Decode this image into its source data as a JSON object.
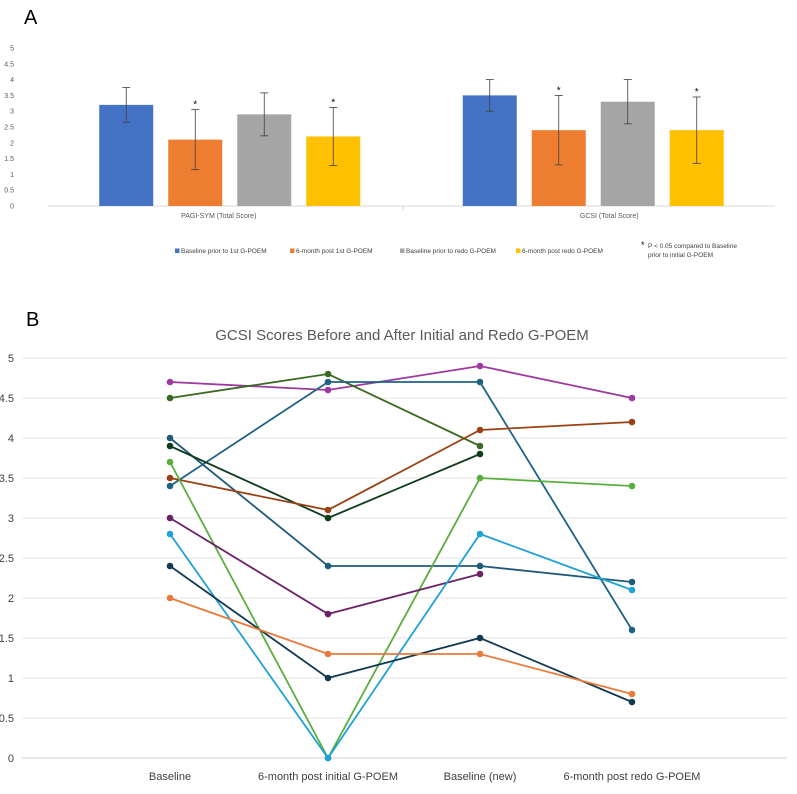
{
  "panel_a_label": "A",
  "panel_b_label": "B",
  "chart_data": [
    {
      "type": "bar",
      "panel": "A",
      "title": "",
      "categories": [
        "PAGI-SYM (Total Score)",
        "GCSI (Total Score)"
      ],
      "series": [
        {
          "name": "Baseline prior to 1st G-POEM",
          "color": "#4472C4",
          "values": [
            3.2,
            3.5
          ],
          "error": [
            0.55,
            0.5
          ],
          "significant": [
            false,
            false
          ]
        },
        {
          "name": "6-month post 1st G-POEM",
          "color": "#ED7D31",
          "values": [
            2.1,
            2.4
          ],
          "error": [
            0.95,
            1.1
          ],
          "significant": [
            true,
            true
          ]
        },
        {
          "name": "Baseline prior to redo G-POEM",
          "color": "#A5A5A5",
          "values": [
            2.9,
            3.3
          ],
          "error": [
            0.68,
            0.7
          ],
          "significant": [
            false,
            false
          ]
        },
        {
          "name": "6-month post redo G-POEM",
          "color": "#FFC000",
          "values": [
            2.2,
            2.4
          ],
          "error": [
            0.92,
            1.05
          ],
          "significant": [
            true,
            true
          ]
        }
      ],
      "ylim": [
        0,
        5
      ],
      "yticks": [
        "0",
        "0.5",
        "1",
        "1.5",
        "2",
        "2.5",
        "3",
        "3.5",
        "4",
        "4.5",
        "5"
      ],
      "footnote_marker": "*",
      "footnote_lines": [
        "P < 0.05 compared to Baseline",
        "prior to initial G-POEM"
      ],
      "legend_position": "bottom"
    },
    {
      "type": "line",
      "panel": "B",
      "title": "GCSI Scores Before and After Initial and Redo G-POEM",
      "categories": [
        "Baseline",
        "6-month post initial G-POEM",
        "Baseline (new)",
        "6-month post redo G-POEM"
      ],
      "ylim": [
        0,
        5
      ],
      "yticks": [
        "0",
        "0.5",
        "1",
        "1.5",
        "2",
        "2.5",
        "3",
        "3.5",
        "4",
        "4.5",
        "5"
      ],
      "grid": true,
      "series": [
        {
          "color": "#9E3A9E",
          "values": [
            4.7,
            4.6,
            4.9,
            4.5
          ]
        },
        {
          "color": "#3B6A23",
          "values": [
            4.5,
            4.8,
            3.9,
            null
          ]
        },
        {
          "color": "#1F6286",
          "values": [
            3.4,
            4.7,
            4.7,
            1.6
          ]
        },
        {
          "color": "#1F5A7A",
          "values": [
            4.0,
            2.4,
            2.4,
            2.2
          ]
        },
        {
          "color": "#0E3C1C",
          "values": [
            3.9,
            3.0,
            3.8,
            null
          ]
        },
        {
          "color": "#9A4215",
          "values": [
            3.5,
            3.1,
            4.1,
            4.2
          ]
        },
        {
          "color": "#5AAE3E",
          "values": [
            3.7,
            0.0,
            3.5,
            3.4
          ]
        },
        {
          "color": "#6B2266",
          "values": [
            3.0,
            1.8,
            2.3,
            null
          ]
        },
        {
          "color": "#1FA2D6",
          "values": [
            2.8,
            0.0,
            2.8,
            2.1
          ]
        },
        {
          "color": "#123B52",
          "values": [
            2.4,
            1.0,
            1.5,
            0.7
          ]
        },
        {
          "color": "#E97A3B",
          "values": [
            2.0,
            1.3,
            1.3,
            0.8
          ]
        }
      ]
    }
  ]
}
